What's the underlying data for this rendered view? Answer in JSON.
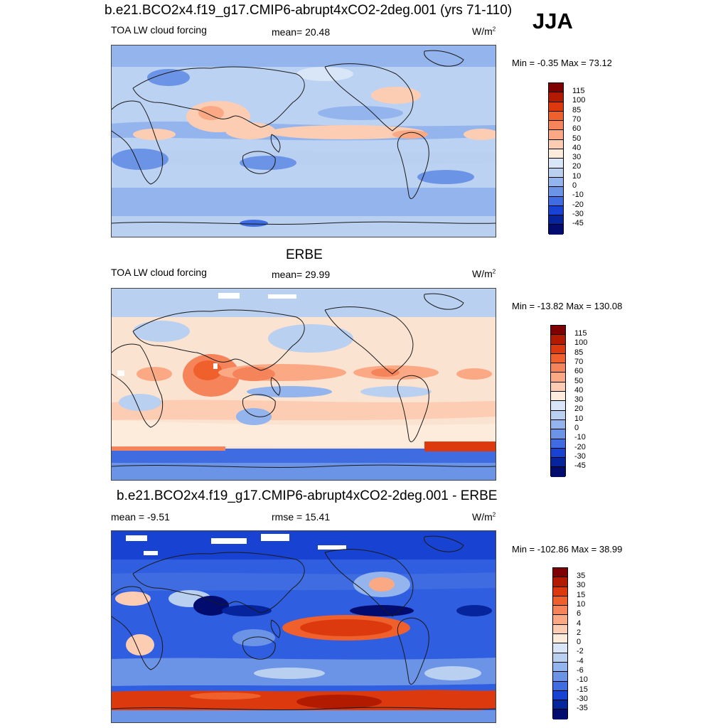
{
  "title": "b.e21.BCO2x4.f19_g17.CMIP6-abrupt4xCO2-2deg.001 (yrs 71-110)",
  "season": "JJA",
  "panels": [
    {
      "id": "model",
      "heading": "",
      "left_label": "TOA LW cloud forcing",
      "center_label": "mean=  20.48",
      "units": "W/m",
      "units_sup": "2",
      "minmax": "Min =  -0.35 Max =  73.12",
      "levels": [
        "115",
        "100",
        "85",
        "70",
        "60",
        "50",
        "40",
        "30",
        "20",
        "10",
        "0",
        "-10",
        "-20",
        "-30",
        "-45"
      ]
    },
    {
      "id": "erbe",
      "heading": "ERBE",
      "left_label": "TOA LW cloud forcing",
      "center_label": "mean=  29.99",
      "units": "W/m",
      "units_sup": "2",
      "minmax": "Min = -13.82 Max = 130.08",
      "levels": [
        "115",
        "100",
        "85",
        "70",
        "60",
        "50",
        "40",
        "30",
        "20",
        "10",
        "0",
        "-10",
        "-20",
        "-30",
        "-45"
      ]
    },
    {
      "id": "diff",
      "heading": "b.e21.BCO2x4.f19_g17.CMIP6-abrupt4xCO2-2deg.001 - ERBE",
      "left_label": "mean =  -9.51",
      "center_label": "rmse =  15.41",
      "units": "W/m",
      "units_sup": "2",
      "minmax": "Min = -102.86 Max =  38.99",
      "levels": [
        "35",
        "30",
        "15",
        "10",
        "6",
        "4",
        "2",
        "0",
        "-2",
        "-4",
        "-6",
        "-10",
        "-15",
        "-30",
        "-35"
      ]
    }
  ],
  "colorbar_colors": [
    "#7f0000",
    "#b21b00",
    "#dc3a0e",
    "#f0602c",
    "#f6845a",
    "#fba985",
    "#fdcdb3",
    "#fdebdc",
    "#d8e6f7",
    "#b9d0f1",
    "#93b4ec",
    "#6b93e6",
    "#3f6ce0",
    "#1842d2",
    "#06249c",
    "#020c6e"
  ],
  "map_colors": {
    "ocean_base_model": "#bcd2f2",
    "ocean_base_erbe": "#fbe3d2",
    "ocean_base_diff": "#2f5ee0",
    "coast": "#1a1a1a"
  }
}
